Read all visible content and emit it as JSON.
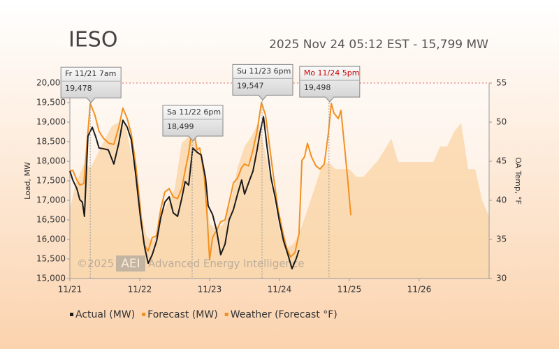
{
  "chart_data": {
    "type": "line",
    "title": "IESO",
    "subtitle": "2025 Nov 24 05:12 EST - 15,799 MW",
    "ylabel": "Load, MW",
    "y2label": "OA Temp, °F",
    "watermark": [
      "©2025",
      "AEI",
      "Advanced Energy Intelligence"
    ],
    "xlim": [
      0,
      144
    ],
    "xticks": [
      {
        "value": 0,
        "label": "11/21"
      },
      {
        "value": 24,
        "label": "11/22"
      },
      {
        "value": 48,
        "label": "11/23"
      },
      {
        "value": 72,
        "label": "11/24"
      },
      {
        "value": 96,
        "label": "11/25"
      },
      {
        "value": 120,
        "label": "11/26"
      }
    ],
    "ylim": [
      15000,
      20000
    ],
    "yticks": [
      {
        "value": 15000,
        "label": "15,000"
      },
      {
        "value": 15500,
        "label": "15,500"
      },
      {
        "value": 16000,
        "label": "16,000"
      },
      {
        "value": 16500,
        "label": "16,500"
      },
      {
        "value": 17000,
        "label": "17,000"
      },
      {
        "value": 17500,
        "label": "17,500"
      },
      {
        "value": 18000,
        "label": "18,000"
      },
      {
        "value": 18500,
        "label": "18,500"
      },
      {
        "value": 19000,
        "label": "19,000"
      },
      {
        "value": 19500,
        "label": "19,500"
      },
      {
        "value": 20000,
        "label": "20,000"
      }
    ],
    "y2lim": [
      30,
      55
    ],
    "y2ticks": [
      30,
      35,
      40,
      45,
      50,
      55
    ],
    "legend": "bottom",
    "series": [
      {
        "name": "Actual (MW)",
        "color": "#1a1a1a",
        "x": [
          0,
          1,
          2.4,
          3.4,
          4.3,
          5,
          6.2,
          7.7,
          8.9,
          10,
          11.5,
          13.2,
          15.1,
          16.8,
          18.2,
          19.7,
          21.1,
          22.6,
          24.2,
          25.7,
          26.9,
          28.3,
          29.8,
          31.2,
          32.6,
          34.1,
          35.5,
          37,
          38.4,
          39.6,
          40.8,
          42.2,
          43.7,
          45.1,
          46.6,
          47.5,
          49,
          50.4,
          51.8,
          53.3,
          54.7,
          56.2,
          57.6,
          59,
          60,
          61.4,
          62.9,
          64.3,
          65.3,
          66.5,
          67.7,
          69.1,
          70.6,
          72,
          73.4,
          74.9,
          76.3,
          77.8,
          78.7
        ],
        "values": [
          17750,
          17520,
          17300,
          17020,
          16950,
          16590,
          18640,
          18870,
          18620,
          18340,
          18320,
          18290,
          17930,
          18460,
          19050,
          18870,
          18550,
          17660,
          16590,
          15790,
          15390,
          15610,
          15960,
          16550,
          16950,
          17090,
          16680,
          16590,
          17040,
          17480,
          17390,
          18340,
          18230,
          18160,
          17570,
          16860,
          16640,
          16230,
          15610,
          15880,
          16500,
          16770,
          17160,
          17520,
          17160,
          17450,
          17750,
          18290,
          18730,
          19140,
          18380,
          17570,
          17040,
          16450,
          15960,
          15610,
          15250,
          15520,
          15730
        ]
      },
      {
        "name": "Forecast (MW)",
        "color": "#f39020",
        "x": [
          0,
          1,
          2.4,
          3.4,
          4.8,
          5.8,
          7,
          8.6,
          10,
          11.5,
          13.4,
          15.1,
          16.8,
          18.2,
          19.7,
          21.1,
          22.6,
          24,
          25.4,
          26.9,
          28.3,
          29.8,
          31.2,
          32.6,
          34.1,
          35.5,
          37,
          38.4,
          39.8,
          40.8,
          42.2,
          43.7,
          44.6,
          46.1,
          47,
          48,
          49,
          50.4,
          51.8,
          53.3,
          54.7,
          56.2,
          57.6,
          59,
          60,
          61.4,
          62.9,
          64.3,
          65.8,
          67.2,
          68.6,
          70.1,
          71.5,
          73,
          74.4,
          75.8,
          77.3,
          78.7,
          79.7,
          80.6,
          81.6,
          83,
          84.5,
          85.9,
          87.4,
          88.8,
          89.8,
          90.7,
          92.2,
          93.1,
          94.1,
          95.5,
          96.5
        ],
        "values": [
          17750,
          17770,
          17520,
          17390,
          17430,
          18380,
          19480,
          19180,
          18770,
          18590,
          18460,
          18430,
          18870,
          19360,
          19090,
          18700,
          17930,
          16950,
          15880,
          15700,
          16050,
          16090,
          16770,
          17210,
          17300,
          17090,
          17040,
          17300,
          17840,
          18200,
          18950,
          18290,
          18340,
          17660,
          16770,
          15480,
          16050,
          16230,
          16450,
          16500,
          16950,
          17450,
          17570,
          17840,
          17930,
          17880,
          18290,
          18770,
          19500,
          19180,
          18380,
          17520,
          16770,
          16230,
          15790,
          15550,
          15660,
          16140,
          18020,
          18110,
          18460,
          18110,
          17880,
          17800,
          17930,
          18730,
          19480,
          19230,
          19090,
          19300,
          18550,
          17480,
          16620
        ]
      },
      {
        "name": "Weather (Forecast °F)",
        "color": "#f8c98a",
        "type": "area",
        "axis": "y2",
        "x": [
          0,
          1.9,
          4.8,
          7.2,
          9.6,
          12,
          14.4,
          16.8,
          19.2,
          21.6,
          24,
          26.4,
          28.8,
          31.2,
          33.6,
          36,
          38.4,
          40.8,
          43.2,
          45.6,
          48,
          50.4,
          52.8,
          55.2,
          57.6,
          60,
          62.4,
          64.8,
          67.2,
          69.6,
          72,
          74.4,
          76.8,
          79.2,
          81.6,
          84,
          86.4,
          88.8,
          91.2,
          93.6,
          96,
          98.4,
          100.8,
          103.2,
          105.6,
          108,
          110.4,
          112.8,
          115.2,
          120,
          124.8,
          127.2,
          129.6,
          132,
          134.4,
          136.8,
          139.2,
          141.6,
          144
        ],
        "values": [
          38.8,
          42,
          44.6,
          44.2,
          46,
          47.8,
          49.5,
          50,
          49.5,
          45,
          38.8,
          35.3,
          34.8,
          37.9,
          39.7,
          41.5,
          47.3,
          48.2,
          47.8,
          44.2,
          37,
          36.2,
          37,
          39.7,
          44.2,
          46.9,
          48.2,
          50,
          46,
          41.1,
          36.2,
          33.9,
          34.4,
          36.2,
          38.8,
          41.5,
          44.2,
          44.9,
          44,
          44,
          44,
          43,
          43,
          44,
          45,
          46.4,
          47.9,
          44.9,
          44.9,
          44.9,
          44.9,
          46.9,
          46.9,
          48.8,
          49.9,
          44,
          44,
          40,
          37.9
        ]
      }
    ],
    "annotations": [
      {
        "label": "Fr 11/21 7am",
        "x": 7,
        "value": 19478,
        "value_label": "19,478",
        "color": "#333333"
      },
      {
        "label": "Sa 11/22 6pm",
        "x": 42,
        "value": 18499,
        "value_label": "18,499",
        "color": "#333333"
      },
      {
        "label": "Su 11/23 6pm",
        "x": 66,
        "value": 19547,
        "value_label": "19,547",
        "color": "#333333"
      },
      {
        "label": "Mo 11/24 5pm",
        "x": 89,
        "value": 19498,
        "value_label": "19,498",
        "color": "#cc0000"
      }
    ]
  }
}
